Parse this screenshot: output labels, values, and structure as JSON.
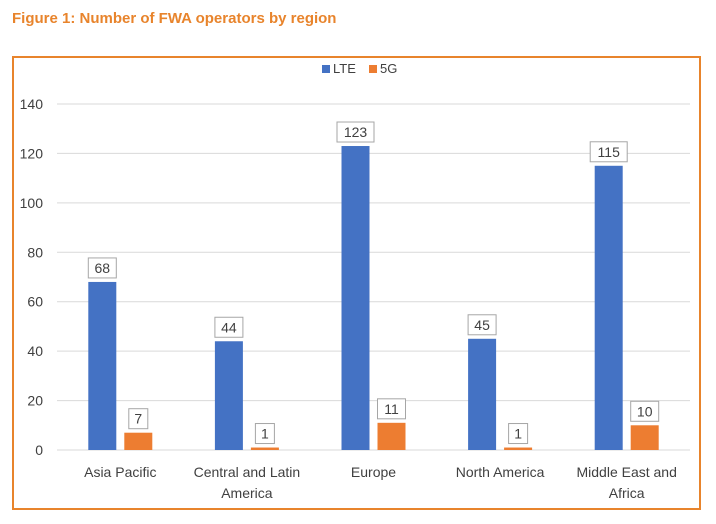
{
  "figure": {
    "title": "Figure 1: Number of FWA operators by region"
  },
  "colors": {
    "title": "#E8842C",
    "frame": "#E8842C",
    "grid": "#D9D9D9",
    "axis_text": "#404040"
  },
  "chart_data": {
    "type": "bar",
    "categories": [
      [
        "Asia Pacific"
      ],
      [
        "Central and Latin",
        "America"
      ],
      [
        "Europe"
      ],
      [
        "North America"
      ],
      [
        "Middle East and",
        "Africa"
      ]
    ],
    "series": [
      {
        "name": "LTE",
        "color": "#4472C4",
        "values": [
          68,
          44,
          123,
          45,
          115
        ]
      },
      {
        "name": "5G",
        "color": "#ED7D31",
        "values": [
          7,
          1,
          11,
          1,
          10
        ]
      }
    ],
    "ylim": [
      0,
      140
    ],
    "yticks": [
      0,
      20,
      40,
      60,
      80,
      100,
      120,
      140
    ],
    "grid": true,
    "legend_position": "top-center",
    "data_labels": true
  }
}
